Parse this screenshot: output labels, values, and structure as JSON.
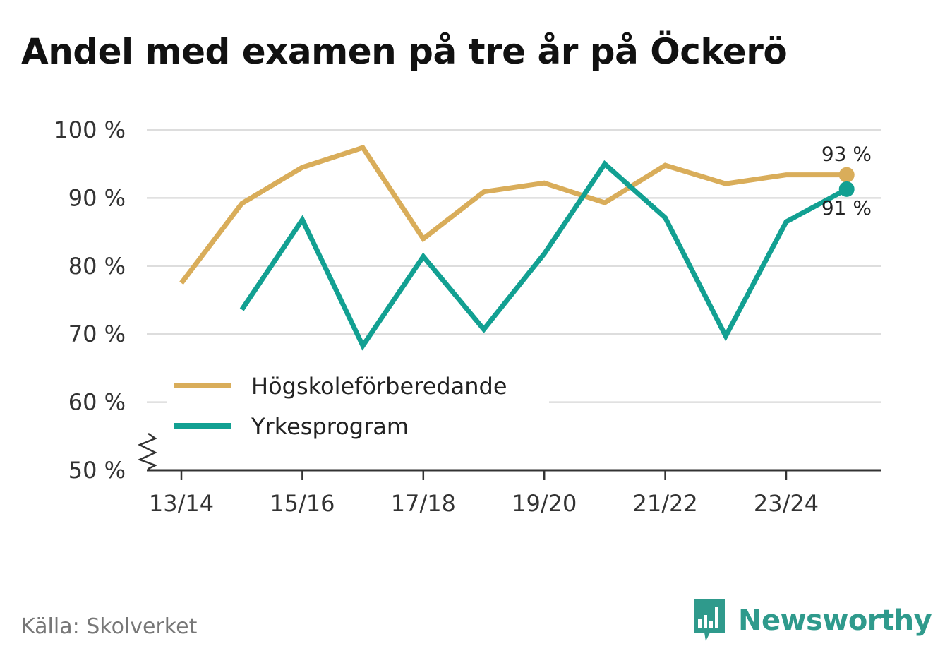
{
  "title": "Andel med examen på tre år på Öckerö",
  "source": "Källa: Skolverket",
  "brand": "Newsworthy",
  "colors": {
    "hogskole": "#d9ad5a",
    "yrke": "#12a092",
    "grid": "#dddddd",
    "axis": "#333333",
    "brand": "#2f9a8c"
  },
  "chart_data": {
    "type": "line",
    "title": "Andel med examen på tre år på Öckerö",
    "x": [
      "13/14",
      "14/15",
      "15/16",
      "16/17",
      "17/18",
      "18/19",
      "19/20",
      "20/21",
      "21/22",
      "22/23",
      "23/24",
      "24/25"
    ],
    "x_tick_labels": [
      "13/14",
      "15/16",
      "17/18",
      "19/20",
      "21/22",
      "23/24"
    ],
    "y_ticks": [
      50,
      60,
      70,
      80,
      90,
      100
    ],
    "y_tick_labels": [
      "50 %",
      "60 %",
      "70 %",
      "80 %",
      "90 %",
      "100 %"
    ],
    "ylim": [
      50,
      100
    ],
    "y_axis_break": true,
    "grid": true,
    "legend_position": "bottom-left",
    "series": [
      {
        "name": "Högskoleförberedande",
        "color": "#d9ad5a",
        "values": [
          77.5,
          89.2,
          94.5,
          97.4,
          84.0,
          90.9,
          92.2,
          89.3,
          94.8,
          92.1,
          93.4,
          93.4
        ],
        "end_label": "93 %"
      },
      {
        "name": "Yrkesprogram",
        "color": "#12a092",
        "values": [
          null,
          73.6,
          86.8,
          68.3,
          81.4,
          70.7,
          81.8,
          95.0,
          87.1,
          69.7,
          86.5,
          91.3
        ],
        "end_label": "91 %"
      }
    ]
  }
}
